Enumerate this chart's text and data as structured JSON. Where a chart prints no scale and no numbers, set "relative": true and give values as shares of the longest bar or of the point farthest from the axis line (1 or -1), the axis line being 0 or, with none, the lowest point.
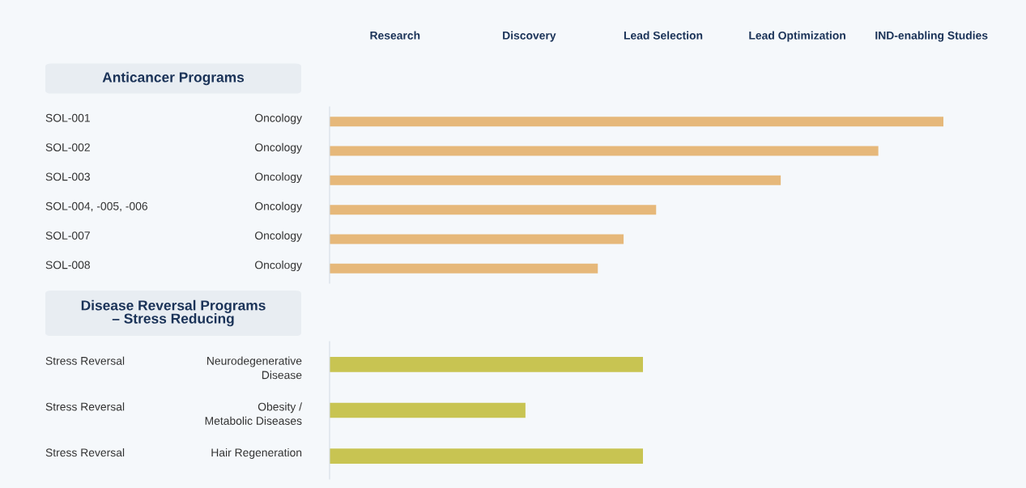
{
  "chart_data": [
    {
      "type": "other",
      "categories": [
        "Research",
        "Discovery",
        "Lead Selection",
        "Lead Optimization",
        "IND-enabling Studies"
      ]
    },
    {
      "type": "bar",
      "orientation": "horizontal",
      "relative": true,
      "title": "Anticancer Programs",
      "categories": [
        "SOL-001",
        "SOL-002",
        "SOL-003",
        "SOL-004, -005, -006",
        "SOL-007",
        "SOL-008"
      ],
      "annotations": [
        "Oncology",
        "Oncology",
        "Oncology",
        "Oncology",
        "Oncology",
        "Oncology"
      ],
      "series": [
        {
          "color": "#e6b87a",
          "values": [
            1,
            0.894,
            0.735,
            0.532,
            0.479,
            0.437
          ]
        }
      ]
    },
    {
      "type": "bar",
      "orientation": "horizontal",
      "relative": true,
      "title": "Disease Reversal Programs\n– Stress Reducing",
      "categories": [
        "Stress Reversal",
        "Stress Reversal",
        "Stress Reversal"
      ],
      "annotations": [
        "Neurodegenerative\nDisease",
        "Obesity /\nMetabolic Diseases",
        "Hair Regeneration"
      ],
      "series": [
        {
          "color": "#c8c452",
          "values": [
            1,
            0.625,
            1
          ]
        }
      ]
    }
  ]
}
